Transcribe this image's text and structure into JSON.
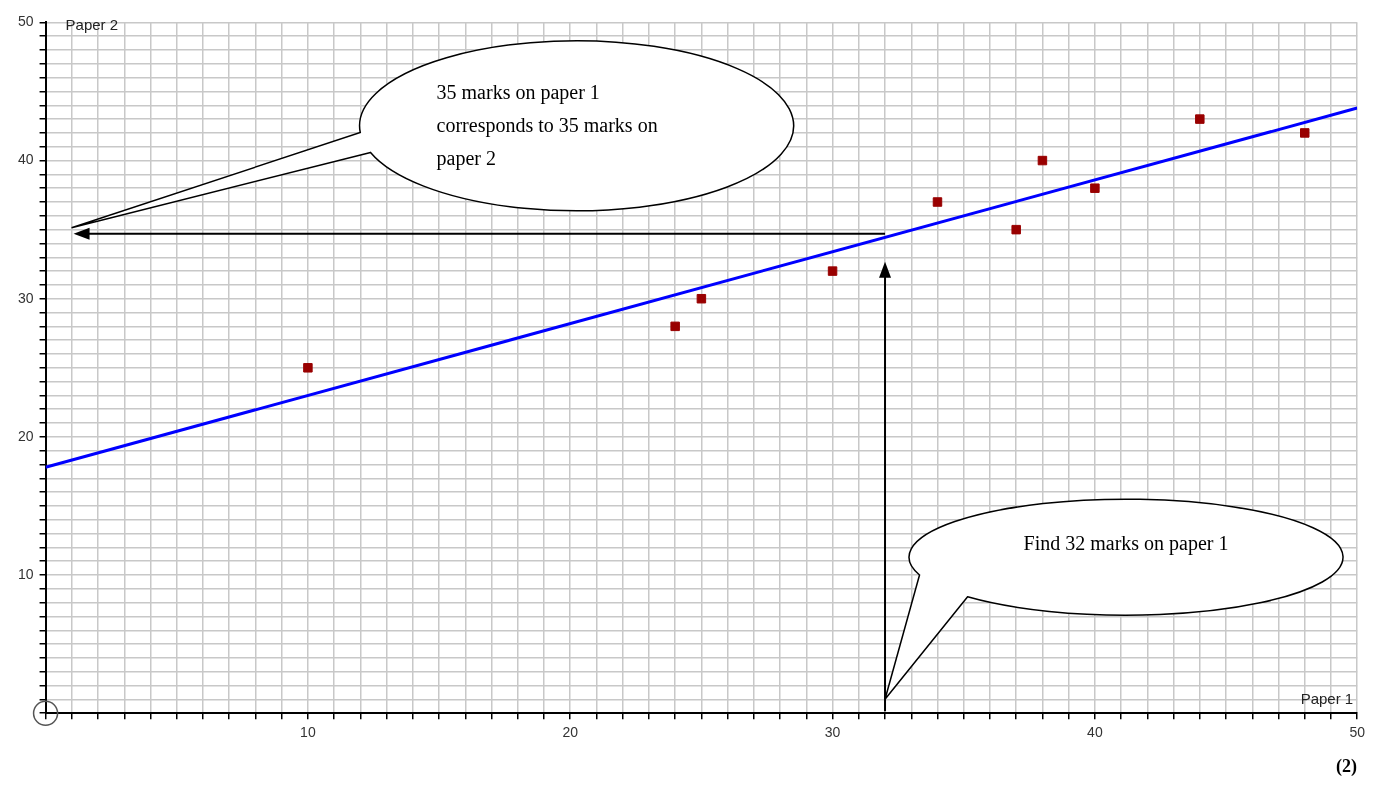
{
  "chart_data": {
    "type": "scatter",
    "xlabel": "Paper 1",
    "ylabel": "Paper 2",
    "series": [
      {
        "color": "#990000",
        "x": [
          10,
          24,
          25,
          30,
          34,
          37,
          38,
          40,
          44,
          48
        ],
        "values": [
          25,
          28,
          30,
          32,
          37,
          35,
          40,
          38,
          43,
          42
        ],
        "marker": "square"
      },
      {
        "type": "line",
        "color": "#0000ff",
        "x": [
          0,
          50
        ],
        "values": [
          17.8,
          43.8
        ],
        "marker": "none",
        "line_style": "solid"
      }
    ],
    "xlim": [
      0,
      50
    ],
    "ylim": [
      0,
      50
    ],
    "xticks": [
      {
        "value": 0,
        "label": null
      },
      {
        "value": 1,
        "label": null
      },
      {
        "value": 2,
        "label": null
      },
      {
        "value": 3,
        "label": null
      },
      {
        "value": 4,
        "label": null
      },
      {
        "value": 5,
        "label": null
      },
      {
        "value": 6,
        "label": null
      },
      {
        "value": 7,
        "label": null
      },
      {
        "value": 8,
        "label": null
      },
      {
        "value": 9,
        "label": null
      },
      10,
      {
        "value": 11,
        "label": null
      },
      {
        "value": 12,
        "label": null
      },
      {
        "value": 13,
        "label": null
      },
      {
        "value": 14,
        "label": null
      },
      {
        "value": 15,
        "label": null
      },
      {
        "value": 16,
        "label": null
      },
      {
        "value": 17,
        "label": null
      },
      {
        "value": 18,
        "label": null
      },
      {
        "value": 19,
        "label": null
      },
      20,
      {
        "value": 21,
        "label": null
      },
      {
        "value": 22,
        "label": null
      },
      {
        "value": 23,
        "label": null
      },
      {
        "value": 24,
        "label": null
      },
      {
        "value": 25,
        "label": null
      },
      {
        "value": 26,
        "label": null
      },
      {
        "value": 27,
        "label": null
      },
      {
        "value": 28,
        "label": null
      },
      {
        "value": 29,
        "label": null
      },
      30,
      {
        "value": 31,
        "label": null
      },
      {
        "value": 32,
        "label": null
      },
      {
        "value": 33,
        "label": null
      },
      {
        "value": 34,
        "label": null
      },
      {
        "value": 35,
        "label": null
      },
      {
        "value": 36,
        "label": null
      },
      {
        "value": 37,
        "label": null
      },
      {
        "value": 38,
        "label": null
      },
      {
        "value": 39,
        "label": null
      },
      40,
      {
        "value": 41,
        "label": null
      },
      {
        "value": 42,
        "label": null
      },
      {
        "value": 43,
        "label": null
      },
      {
        "value": 44,
        "label": null
      },
      {
        "value": 45,
        "label": null
      },
      {
        "value": 46,
        "label": null
      },
      {
        "value": 47,
        "label": null
      },
      {
        "value": 48,
        "label": null
      },
      {
        "value": 49,
        "label": null
      },
      50
    ],
    "yticks": [
      {
        "value": 0,
        "label": null
      },
      {
        "value": 1,
        "label": null
      },
      {
        "value": 2,
        "label": null
      },
      {
        "value": 3,
        "label": null
      },
      {
        "value": 4,
        "label": null
      },
      {
        "value": 5,
        "label": null
      },
      {
        "value": 6,
        "label": null
      },
      {
        "value": 7,
        "label": null
      },
      {
        "value": 8,
        "label": null
      },
      {
        "value": 9,
        "label": null
      },
      10,
      {
        "value": 11,
        "label": null
      },
      {
        "value": 12,
        "label": null
      },
      {
        "value": 13,
        "label": null
      },
      {
        "value": 14,
        "label": null
      },
      {
        "value": 15,
        "label": null
      },
      {
        "value": 16,
        "label": null
      },
      {
        "value": 17,
        "label": null
      },
      {
        "value": 18,
        "label": null
      },
      {
        "value": 19,
        "label": null
      },
      20,
      {
        "value": 21,
        "label": null
      },
      {
        "value": 22,
        "label": null
      },
      {
        "value": 23,
        "label": null
      },
      {
        "value": 24,
        "label": null
      },
      {
        "value": 25,
        "label": null
      },
      {
        "value": 26,
        "label": null
      },
      {
        "value": 27,
        "label": null
      },
      {
        "value": 28,
        "label": null
      },
      {
        "value": 29,
        "label": null
      },
      30,
      {
        "value": 31,
        "label": null
      },
      {
        "value": 32,
        "label": null
      },
      {
        "value": 33,
        "label": null
      },
      {
        "value": 34,
        "label": null
      },
      {
        "value": 35,
        "label": null
      },
      {
        "value": 36,
        "label": null
      },
      {
        "value": 37,
        "label": null
      },
      {
        "value": 38,
        "label": null
      },
      {
        "value": 39,
        "label": null
      },
      40,
      {
        "value": 41,
        "label": null
      },
      {
        "value": 42,
        "label": null
      },
      {
        "value": 43,
        "label": null
      },
      {
        "value": 44,
        "label": null
      },
      {
        "value": 45,
        "label": null
      },
      {
        "value": 46,
        "label": null
      },
      {
        "value": 47,
        "label": null
      },
      {
        "value": 48,
        "label": null
      },
      {
        "value": 49,
        "label": null
      },
      50
    ],
    "grid": true,
    "legend": false,
    "annotations": [
      "35 marks on paper 1 corresponds to 35 marks on paper 2",
      "Find 32 marks on paper 1",
      "(2)"
    ],
    "ref_lines": [
      {
        "axis": "x",
        "value": 32,
        "color": "#000000"
      },
      {
        "axis": "y",
        "value": 34.7,
        "color": "#000000"
      }
    ]
  }
}
